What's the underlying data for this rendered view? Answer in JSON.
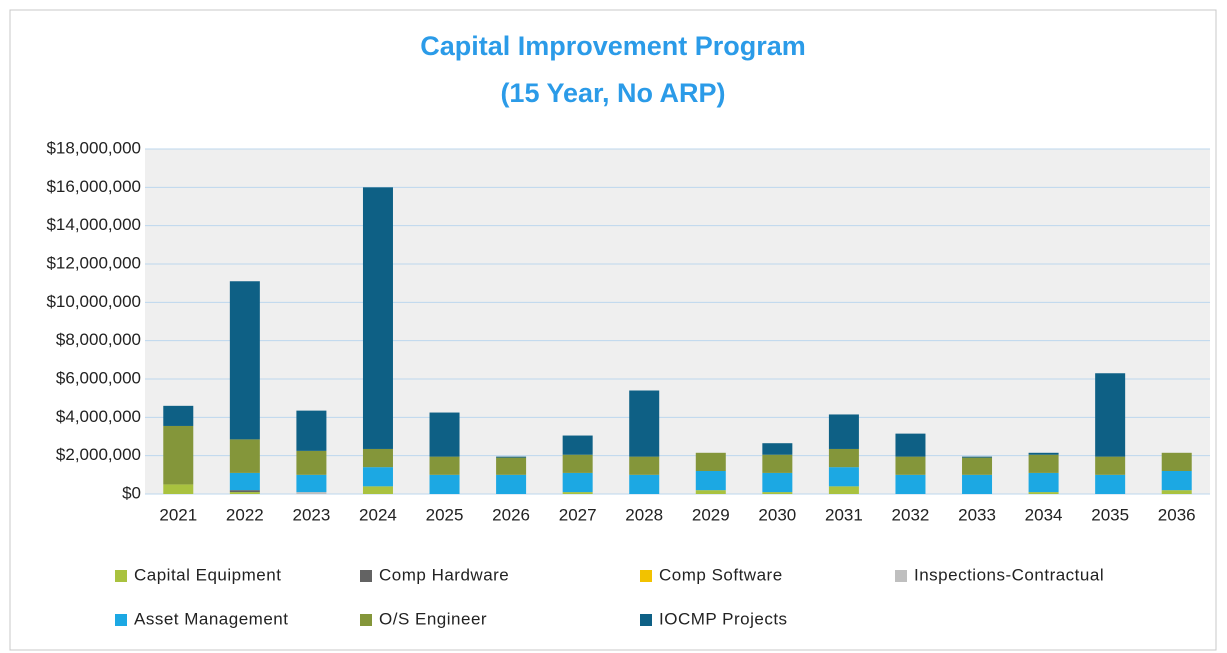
{
  "chart_data": {
    "type": "stacked_bar",
    "title": "Capital Improvement Program",
    "subtitle": "(15 Year, No ARP)",
    "categories": [
      "2021",
      "2022",
      "2023",
      "2024",
      "2025",
      "2026",
      "2027",
      "2028",
      "2029",
      "2030",
      "2031",
      "2032",
      "2033",
      "2034",
      "2035",
      "2036"
    ],
    "series": [
      {
        "name": "Capital Equipment",
        "color": "#a9c23f",
        "values": [
          500000,
          100000,
          0,
          400000,
          0,
          0,
          100000,
          0,
          200000,
          100000,
          400000,
          0,
          0,
          100000,
          0,
          200000
        ]
      },
      {
        "name": "Comp Hardware",
        "color": "#636363",
        "values": [
          0,
          100000,
          0,
          0,
          0,
          0,
          0,
          0,
          0,
          0,
          0,
          0,
          0,
          0,
          0,
          0
        ]
      },
      {
        "name": "Comp Software",
        "color": "#f2c200",
        "values": [
          0,
          0,
          0,
          0,
          0,
          0,
          0,
          0,
          0,
          0,
          0,
          0,
          0,
          0,
          0,
          0
        ]
      },
      {
        "name": "Inspections-Contractual",
        "color": "#bfbfbf",
        "values": [
          0,
          0,
          100000,
          0,
          0,
          0,
          0,
          0,
          0,
          0,
          0,
          0,
          0,
          0,
          0,
          0
        ]
      },
      {
        "name": "Asset Management",
        "color": "#1ca8e3",
        "values": [
          0,
          900000,
          900000,
          1000000,
          1000000,
          1000000,
          1000000,
          1000000,
          1000000,
          1000000,
          1000000,
          1000000,
          1000000,
          1000000,
          1000000,
          1000000
        ]
      },
      {
        "name": "O/S Engineer",
        "color": "#84963a",
        "values": [
          3050000,
          1750000,
          1250000,
          950000,
          950000,
          900000,
          950000,
          950000,
          950000,
          950000,
          950000,
          950000,
          900000,
          950000,
          950000,
          950000
        ]
      },
      {
        "name": "IOCMP Projects",
        "color": "#0e6085",
        "values": [
          1050000,
          8250000,
          2100000,
          13650000,
          2300000,
          50000,
          1000000,
          3450000,
          0,
          600000,
          1800000,
          1200000,
          50000,
          100000,
          4350000,
          0
        ]
      }
    ],
    "ylim": [
      0,
      18000000
    ],
    "yticks": [
      {
        "value": 0,
        "label": "$0"
      },
      {
        "value": 2000000,
        "label": "$2,000,000"
      },
      {
        "value": 4000000,
        "label": "$4,000,000"
      },
      {
        "value": 6000000,
        "label": "$6,000,000"
      },
      {
        "value": 8000000,
        "label": "$8,000,000"
      },
      {
        "value": 10000000,
        "label": "$10,000,000"
      },
      {
        "value": 12000000,
        "label": "$12,000,000"
      },
      {
        "value": 14000000,
        "label": "$14,000,000"
      },
      {
        "value": 16000000,
        "label": "$16,000,000"
      },
      {
        "value": 18000000,
        "label": "$18,000,000"
      }
    ],
    "grid": true
  }
}
